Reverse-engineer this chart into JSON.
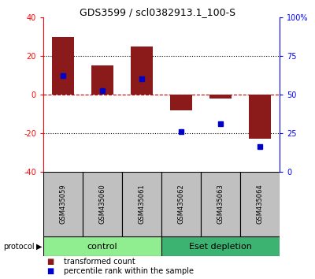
{
  "title": "GDS3599 / scl0382913.1_100-S",
  "samples": [
    "GSM435059",
    "GSM435060",
    "GSM435061",
    "GSM435062",
    "GSM435063",
    "GSM435064"
  ],
  "transformed_count": [
    30,
    15,
    25,
    -8,
    -2,
    -23
  ],
  "percentile_rank": [
    10,
    2,
    8,
    -19,
    -15,
    -27
  ],
  "ylim_left": [
    -40,
    40
  ],
  "bar_color": "#8B1A1A",
  "dot_color": "#0000CD",
  "zero_line_color": "#CC0000",
  "bg_color": "#FFFFFF",
  "right_tick_labels": [
    "0",
    "25",
    "50",
    "75",
    "100%"
  ],
  "right_ticks": [
    0,
    25,
    50,
    75,
    100
  ],
  "left_ticks": [
    -40,
    -20,
    0,
    20,
    40
  ],
  "left_tick_labels": [
    "-40",
    "-20",
    "0",
    "20",
    "40"
  ],
  "control_color": "#90EE90",
  "eset_color": "#3CB371",
  "gray_color": "#C0C0C0",
  "legend_items": [
    {
      "label": "transformed count",
      "color": "#8B1A1A"
    },
    {
      "label": "percentile rank within the sample",
      "color": "#0000CD"
    }
  ]
}
